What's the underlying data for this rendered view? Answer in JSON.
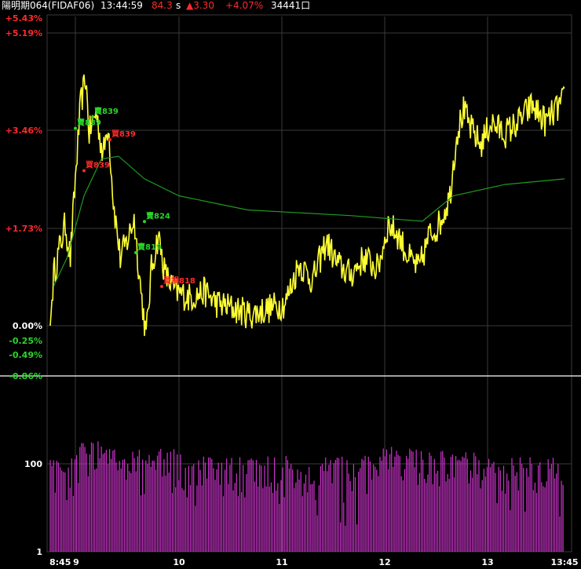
{
  "header": {
    "instrument": "陽明期064(FIDAF06)",
    "time": "13:44:59",
    "price": "84.3",
    "price_suffix": "s",
    "change": "▲3.30",
    "change_pct": "+4.07%",
    "volume": "34441口"
  },
  "colors": {
    "background": "#000000",
    "grid": "#3a3a3a",
    "price_line": "#ffff33",
    "avg_line": "#1f9a1f",
    "volume_bar": "#cc33cc",
    "up_label": "#ff2a2a",
    "down_label": "#29d629",
    "neutral_label": "#ffffff"
  },
  "chart_data": [
    {
      "type": "line",
      "series": [],
      "x_ticks": [
        "8:45",
        "9",
        "10",
        "11",
        "12",
        "13",
        "13:45"
      ],
      "y_ticks": [
        "+5.43%",
        "+5.19%",
        "+3.46%",
        "+1.73%",
        "0.00%",
        "-0.25%",
        "-0.49%",
        "-0.86%"
      ],
      "ylim_pct": [
        -0.86,
        5.43
      ],
      "grid": true,
      "annotations": [
        {
          "text": "賣839",
          "side": "sell",
          "time": "9:00",
          "pct": 3.55
        },
        {
          "text": "賣839",
          "side": "sell",
          "time": "9:10",
          "pct": 3.75
        },
        {
          "text": "買839",
          "side": "buy",
          "time": "9:20",
          "pct": 3.35
        },
        {
          "text": "買839",
          "side": "buy",
          "time": "9:05",
          "pct": 2.8
        },
        {
          "text": "賣824",
          "side": "sell",
          "time": "9:40",
          "pct": 1.9
        },
        {
          "text": "賣819",
          "side": "sell",
          "time": "9:35",
          "pct": 1.35
        },
        {
          "text": "買損818",
          "side": "buy",
          "time": "9:50",
          "pct": 0.75
        }
      ]
    },
    {
      "type": "bar",
      "y_ticks": [
        "100",
        "1"
      ],
      "scale": "log",
      "x_ticks": [
        "8:45",
        "9",
        "10",
        "11",
        "12",
        "13",
        "13:45"
      ]
    }
  ]
}
